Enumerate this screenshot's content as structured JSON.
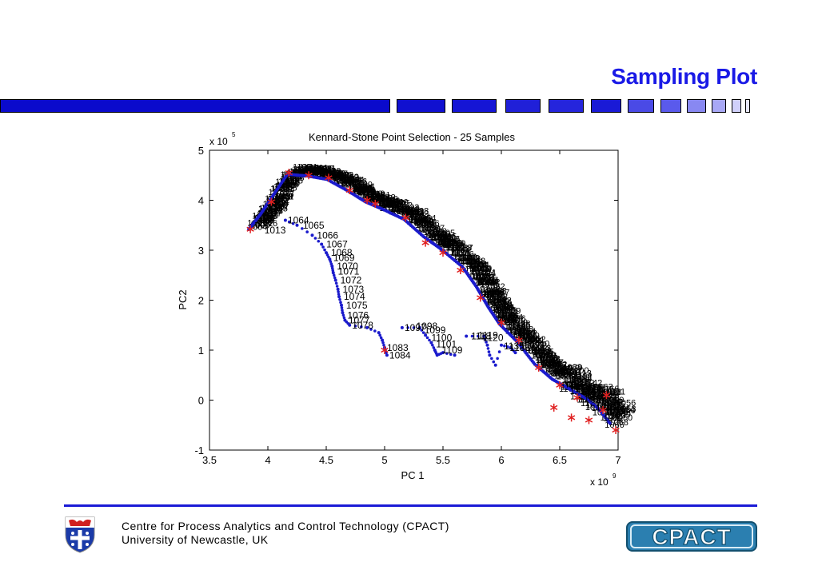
{
  "slide": {
    "title": "Sampling Plot",
    "footer_line1": "Centre for Process Analytics and Control Technology   (CPACT)",
    "footer_line2": "University  of  Newcastle, UK",
    "logo_text": "CPACT"
  },
  "colors": {
    "title": "#1a1ae6",
    "bars": [
      "#0a0acc",
      "#1010d0",
      "#1515d5",
      "#2020d8",
      "#2525dc",
      "#1a1ad6",
      "#4a4ae6",
      "#5a5aec",
      "#8888f2",
      "#a8a8f6",
      "#d0d0fa",
      "#e8e8ff"
    ],
    "points": "#1a1acc",
    "selected": "#e02020",
    "footer_line": "#1a1ad6",
    "logo": "#1f6f9a"
  },
  "chart_data": {
    "type": "scatter",
    "title": "Kennard-Stone Point Selection - 25 Samples",
    "xlabel": "PC 1",
    "ylabel": "PC2",
    "x_multiplier": "x 10",
    "x_exponent": "9",
    "y_multiplier": "x 10",
    "y_exponent": "5",
    "xlim": [
      3.5,
      7.0
    ],
    "ylim": [
      -1,
      5
    ],
    "xticks": [
      3.5,
      4,
      4.5,
      5,
      5.5,
      6,
      6.5,
      7
    ],
    "yticks": [
      -1,
      0,
      1,
      2,
      3,
      4,
      5
    ],
    "grid": false,
    "main_curve": [
      [
        3.85,
        3.45
      ],
      [
        3.95,
        3.75
      ],
      [
        4.05,
        4.1
      ],
      [
        4.18,
        4.55
      ],
      [
        4.35,
        4.52
      ],
      [
        4.52,
        4.45
      ],
      [
        4.7,
        4.22
      ],
      [
        4.85,
        4.0
      ],
      [
        5.0,
        3.85
      ],
      [
        5.18,
        3.65
      ],
      [
        5.35,
        3.3
      ],
      [
        5.5,
        3.05
      ],
      [
        5.68,
        2.7
      ],
      [
        5.8,
        2.3
      ],
      [
        5.9,
        1.9
      ],
      [
        6.0,
        1.55
      ],
      [
        6.15,
        1.2
      ],
      [
        6.3,
        0.75
      ],
      [
        6.45,
        0.45
      ],
      [
        6.6,
        0.25
      ],
      [
        6.75,
        0.05
      ],
      [
        6.85,
        -0.15
      ],
      [
        6.95,
        -0.45
      ]
    ],
    "label_groups": [
      {
        "label": "1064",
        "x": 4.15,
        "y": 3.6
      },
      {
        "label": "1065",
        "x": 4.28,
        "y": 3.5
      },
      {
        "label": "1066",
        "x": 4.4,
        "y": 3.3
      },
      {
        "label": "1067",
        "x": 4.48,
        "y": 3.12
      },
      {
        "label": "1068",
        "x": 4.52,
        "y": 2.95
      },
      {
        "label": "1069",
        "x": 4.54,
        "y": 2.85
      },
      {
        "label": "1070",
        "x": 4.57,
        "y": 2.68
      },
      {
        "label": "1071",
        "x": 4.58,
        "y": 2.58
      },
      {
        "label": "1072",
        "x": 4.6,
        "y": 2.4
      },
      {
        "label": "1073",
        "x": 4.62,
        "y": 2.22
      },
      {
        "label": "1074",
        "x": 4.63,
        "y": 2.07
      },
      {
        "label": "1075",
        "x": 4.65,
        "y": 1.9
      },
      {
        "label": "1076",
        "x": 4.66,
        "y": 1.7
      },
      {
        "label": "1077",
        "x": 4.67,
        "y": 1.6
      },
      {
        "label": "1078",
        "x": 4.7,
        "y": 1.5
      },
      {
        "label": "1083",
        "x": 5.0,
        "y": 1.05
      },
      {
        "label": "1084",
        "x": 5.02,
        "y": 0.9
      },
      {
        "label": "1097",
        "x": 5.15,
        "y": 1.45
      },
      {
        "label": "1098",
        "x": 5.25,
        "y": 1.48
      },
      {
        "label": "1099",
        "x": 5.32,
        "y": 1.4
      },
      {
        "label": "1100",
        "x": 5.38,
        "y": 1.25
      },
      {
        "label": "1101",
        "x": 5.42,
        "y": 1.12
      },
      {
        "label": "1109",
        "x": 5.47,
        "y": 1.0
      },
      {
        "label": "1118",
        "x": 5.72,
        "y": 1.28
      },
      {
        "label": "1119",
        "x": 5.78,
        "y": 1.3
      },
      {
        "label": "1120",
        "x": 5.82,
        "y": 1.25
      },
      {
        "label": "1135",
        "x": 6.0,
        "y": 1.08
      },
      {
        "label": "1136",
        "x": 6.05,
        "y": 1.05
      },
      {
        "label": "1013",
        "x": 3.95,
        "y": 3.4
      }
    ],
    "branches": [
      {
        "points": [
          [
            4.15,
            3.6
          ],
          [
            4.25,
            3.5
          ],
          [
            4.38,
            3.3
          ],
          [
            4.46,
            3.12
          ],
          [
            4.5,
            2.95
          ],
          [
            4.53,
            2.82
          ],
          [
            4.55,
            2.68
          ],
          [
            4.56,
            2.55
          ],
          [
            4.58,
            2.4
          ],
          [
            4.6,
            2.22
          ],
          [
            4.61,
            2.07
          ],
          [
            4.63,
            1.9
          ],
          [
            4.64,
            1.75
          ],
          [
            4.66,
            1.6
          ],
          [
            4.7,
            1.5
          ],
          [
            4.85,
            1.45
          ],
          [
            4.95,
            1.35
          ],
          [
            4.98,
            1.2
          ],
          [
            5.0,
            1.05
          ],
          [
            5.02,
            0.9
          ]
        ]
      },
      {
        "points": [
          [
            5.15,
            1.45
          ],
          [
            5.3,
            1.45
          ],
          [
            5.35,
            1.3
          ],
          [
            5.4,
            1.15
          ],
          [
            5.43,
            1.0
          ],
          [
            5.45,
            0.9
          ],
          [
            5.5,
            0.95
          ],
          [
            5.6,
            0.9
          ]
        ]
      },
      {
        "points": [
          [
            5.7,
            1.28
          ],
          [
            5.85,
            1.28
          ],
          [
            5.88,
            1.1
          ],
          [
            5.9,
            0.9
          ],
          [
            5.95,
            0.7
          ],
          [
            6.0,
            1.1
          ],
          [
            6.08,
            1.05
          ],
          [
            6.12,
            0.95
          ]
        ]
      }
    ],
    "selected_points": [
      [
        3.85,
        3.42
      ],
      [
        4.03,
        3.97
      ],
      [
        4.18,
        4.55
      ],
      [
        4.35,
        4.5
      ],
      [
        4.52,
        4.45
      ],
      [
        4.7,
        4.2
      ],
      [
        4.85,
        4.0
      ],
      [
        5.18,
        3.65
      ],
      [
        5.35,
        3.15
      ],
      [
        5.5,
        2.95
      ],
      [
        5.65,
        2.6
      ],
      [
        5.82,
        2.05
      ],
      [
        6.0,
        1.55
      ],
      [
        6.15,
        1.2
      ],
      [
        6.32,
        0.65
      ],
      [
        6.5,
        0.3
      ],
      [
        6.75,
        -0.4
      ],
      [
        6.87,
        -0.2
      ],
      [
        6.98,
        -0.6
      ],
      [
        5.0,
        1.0
      ],
      [
        4.92,
        3.93
      ],
      [
        6.65,
        0.05
      ],
      [
        6.9,
        0.1
      ],
      [
        6.45,
        -0.15
      ],
      [
        6.6,
        -0.35
      ]
    ]
  }
}
